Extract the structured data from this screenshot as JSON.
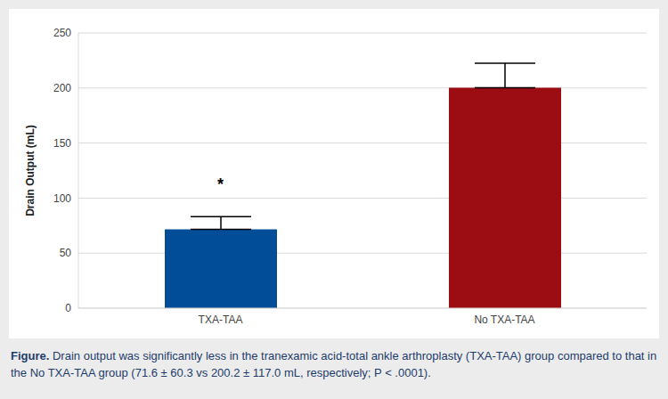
{
  "chart_data": {
    "type": "bar",
    "categories": [
      "TXA-TAA",
      "No TXA-TAA"
    ],
    "values": [
      71.6,
      200.2
    ],
    "errors": [
      11.6,
      22.3
    ],
    "colors": [
      "#024d97",
      "#9c0c13"
    ],
    "y_label": "Drain Output (mL)",
    "ylim": [
      0,
      250
    ],
    "yticks": [
      0,
      50,
      100,
      150,
      200,
      250
    ],
    "grid": true,
    "annotations": [
      {
        "text": "*",
        "category": "TXA-TAA",
        "y": 113
      }
    ],
    "caption_label": "Figure.",
    "caption": "Drain output was significantly less in the tranexamic acid-total ankle arthroplasty (TXA-TAA) group compared to that in the No TXA-TAA group (71.6 ± 60.3 vs 200.2 ± 117.0 mL, respectively; P < .0001)."
  }
}
